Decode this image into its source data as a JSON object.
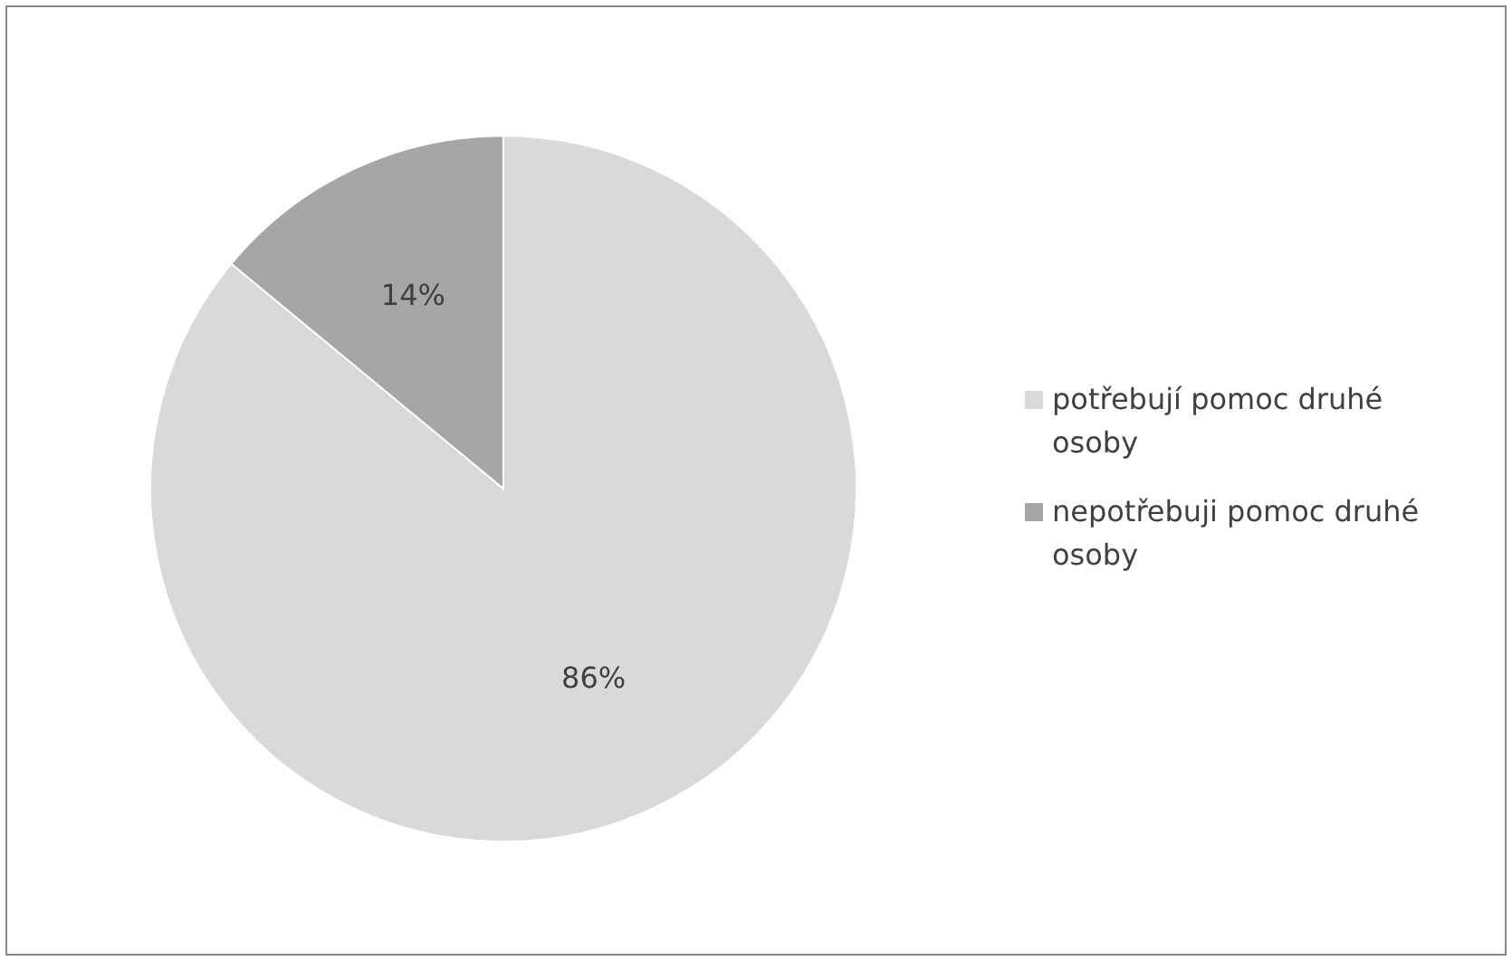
{
  "chart_data": {
    "type": "pie",
    "categories": [
      "potřebují pomoc druhé osoby",
      "nepotřebuji pomoc druhé osoby"
    ],
    "values": [
      86,
      14
    ],
    "colors": [
      "#d9d9d9",
      "#a6a6a6"
    ],
    "value_labels": [
      "86%",
      "14%"
    ],
    "legend": "right"
  }
}
